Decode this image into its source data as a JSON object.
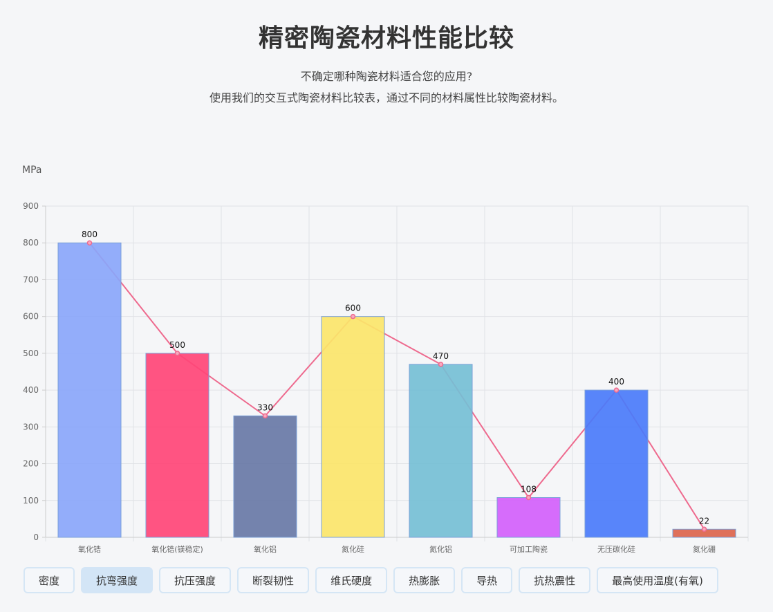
{
  "header": {
    "title": "精密陶瓷材料性能比较",
    "subtitle_line1": "不确定哪种陶瓷材料适合您的应用?",
    "subtitle_line2": "使用我们的交互式陶瓷材料比较表，通过不同的材料属性比较陶瓷材料。"
  },
  "chart_data": {
    "type": "bar",
    "title": "",
    "xlabel": "",
    "ylabel": "MPa",
    "ylim": [
      0,
      900
    ],
    "yticks": [
      0,
      100,
      200,
      300,
      400,
      500,
      600,
      700,
      800,
      900
    ],
    "grid": true,
    "legend": "none",
    "categories": [
      "氧化锆",
      "氧化锆(镁稳定)",
      "氧化铝",
      "氮化硅",
      "氮化铝",
      "可加工陶瓷",
      "无压碳化硅",
      "氮化硼"
    ],
    "values": [
      800,
      500,
      330,
      600,
      470,
      108,
      400,
      22
    ],
    "bar_colors": [
      "#8aa6fa",
      "#ff4577",
      "#6878a6",
      "#fbe56a",
      "#75bfd5",
      "#d260fb",
      "#4a7bfa",
      "#dc644c"
    ],
    "overlay_line": {
      "type": "line",
      "values": [
        800,
        500,
        330,
        600,
        470,
        108,
        400,
        22
      ],
      "color": "#ee6a8e"
    }
  },
  "property_buttons": [
    {
      "label": "密度",
      "active": false
    },
    {
      "label": "抗弯强度",
      "active": true
    },
    {
      "label": "抗压强度",
      "active": false
    },
    {
      "label": "断裂韧性",
      "active": false
    },
    {
      "label": "维氏硬度",
      "active": false
    },
    {
      "label": "热膨胀",
      "active": false
    },
    {
      "label": "导热",
      "active": false
    },
    {
      "label": "抗热震性",
      "active": false
    },
    {
      "label": "最高使用温度(有氧)",
      "active": false
    }
  ]
}
